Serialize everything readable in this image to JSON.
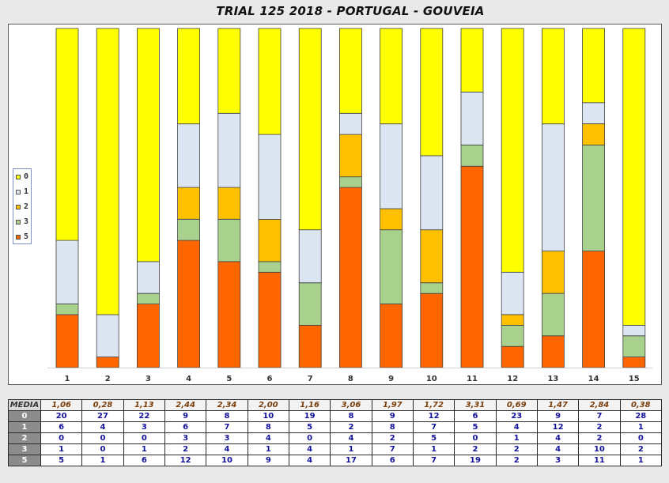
{
  "title": "TRIAL 125 2018 - PORTUGAL - GOUVEIA",
  "legend": [
    {
      "label": "0",
      "color": "#ffff00"
    },
    {
      "label": "1",
      "color": "#dce6f2"
    },
    {
      "label": "2",
      "color": "#ffc000"
    },
    {
      "label": "3",
      "color": "#a9d18e"
    },
    {
      "label": "5",
      "color": "#ff6600"
    }
  ],
  "table": {
    "media_label": "MEDIA",
    "media": [
      "1,06",
      "0,28",
      "1,13",
      "2,44",
      "2,34",
      "2,00",
      "1,16",
      "3,06",
      "1,97",
      "1,72",
      "3,31",
      "0,69",
      "1,47",
      "2,84",
      "0,38"
    ],
    "rows": [
      {
        "label": "0",
        "values": [
          "20",
          "27",
          "22",
          "9",
          "8",
          "10",
          "19",
          "8",
          "9",
          "12",
          "6",
          "23",
          "9",
          "7",
          "28"
        ]
      },
      {
        "label": "1",
        "values": [
          "6",
          "4",
          "3",
          "6",
          "7",
          "8",
          "5",
          "2",
          "8",
          "7",
          "5",
          "4",
          "12",
          "2",
          "1"
        ]
      },
      {
        "label": "2",
        "values": [
          "0",
          "0",
          "0",
          "3",
          "3",
          "4",
          "0",
          "4",
          "2",
          "5",
          "0",
          "1",
          "4",
          "2",
          "0"
        ]
      },
      {
        "label": "3",
        "values": [
          "1",
          "0",
          "1",
          "2",
          "4",
          "1",
          "4",
          "1",
          "7",
          "1",
          "2",
          "2",
          "4",
          "10",
          "2"
        ]
      },
      {
        "label": "5",
        "values": [
          "5",
          "1",
          "6",
          "12",
          "10",
          "9",
          "4",
          "17",
          "6",
          "7",
          "19",
          "2",
          "3",
          "11",
          "1"
        ]
      }
    ]
  },
  "chart_data": {
    "type": "bar",
    "stacked": true,
    "title": "TRIAL 125 2018 - PORTUGAL - GOUVEIA",
    "categories": [
      "1",
      "2",
      "3",
      "4",
      "5",
      "6",
      "7",
      "8",
      "9",
      "10",
      "11",
      "12",
      "13",
      "14",
      "15"
    ],
    "series": [
      {
        "name": "5",
        "color": "#ff6600",
        "values": [
          5,
          1,
          6,
          12,
          10,
          9,
          4,
          17,
          6,
          7,
          19,
          2,
          3,
          11,
          1
        ]
      },
      {
        "name": "3",
        "color": "#a9d18e",
        "values": [
          1,
          0,
          1,
          2,
          4,
          1,
          4,
          1,
          7,
          1,
          2,
          2,
          4,
          10,
          2
        ]
      },
      {
        "name": "2",
        "color": "#ffc000",
        "values": [
          0,
          0,
          0,
          3,
          3,
          4,
          0,
          4,
          2,
          5,
          0,
          1,
          4,
          2,
          0
        ]
      },
      {
        "name": "1",
        "color": "#dce6f2",
        "values": [
          6,
          4,
          3,
          6,
          7,
          8,
          5,
          2,
          8,
          7,
          5,
          4,
          12,
          2,
          1
        ]
      },
      {
        "name": "0",
        "color": "#ffff00",
        "values": [
          20,
          27,
          22,
          9,
          8,
          10,
          19,
          8,
          9,
          12,
          6,
          23,
          9,
          7,
          28
        ]
      }
    ],
    "ylim": [
      0,
      32
    ],
    "legend_position": "left",
    "grid": false
  }
}
